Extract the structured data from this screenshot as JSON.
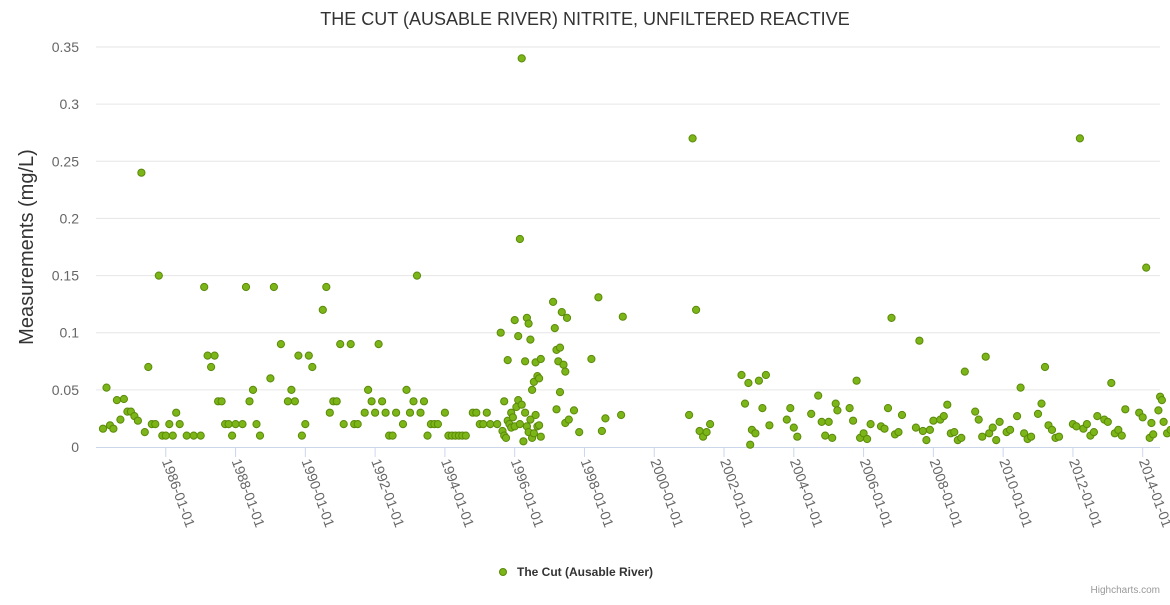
{
  "chart_data": {
    "type": "scatter",
    "title": "THE CUT (AUSABLE RIVER) NITRITE, UNFILTERED REACTIVE",
    "xlabel": "",
    "ylabel": "Measurements (mg/L)",
    "x_type": "date",
    "xlim": [
      "1984-01-01",
      "2014-07-01"
    ],
    "ylim": [
      0,
      0.35
    ],
    "y_ticks": [
      0,
      0.05,
      0.1,
      0.15,
      0.2,
      0.25,
      0.3,
      0.35
    ],
    "y_tick_labels": [
      "0",
      "0.05",
      "0.1",
      "0.15",
      "0.2",
      "0.25",
      "0.3",
      "0.35"
    ],
    "x_ticks": [
      "1986-01-01",
      "1988-01-01",
      "1990-01-01",
      "1992-01-01",
      "1994-01-01",
      "1996-01-01",
      "1998-01-01",
      "2000-01-01",
      "2002-01-01",
      "2004-01-01",
      "2006-01-01",
      "2008-01-01",
      "2010-01-01",
      "2012-01-01",
      "2014-01-01"
    ],
    "grid": "horizontal",
    "legend": "bottom-center",
    "series": [
      {
        "name": "The Cut (Ausable River)",
        "color": "#7cb518",
        "points": [
          [
            1984.2,
            0.016
          ],
          [
            1984.3,
            0.052
          ],
          [
            1984.4,
            0.019
          ],
          [
            1984.5,
            0.016
          ],
          [
            1984.6,
            0.041
          ],
          [
            1984.7,
            0.024
          ],
          [
            1984.8,
            0.042
          ],
          [
            1984.9,
            0.031
          ],
          [
            1985.0,
            0.031
          ],
          [
            1985.1,
            0.027
          ],
          [
            1985.2,
            0.023
          ],
          [
            1985.3,
            0.24
          ],
          [
            1985.4,
            0.013
          ],
          [
            1985.5,
            0.07
          ],
          [
            1985.6,
            0.02
          ],
          [
            1985.7,
            0.02
          ],
          [
            1985.8,
            0.15
          ],
          [
            1985.9,
            0.01
          ],
          [
            1986.0,
            0.01
          ],
          [
            1986.1,
            0.02
          ],
          [
            1986.2,
            0.01
          ],
          [
            1986.3,
            0.03
          ],
          [
            1986.4,
            0.02
          ],
          [
            1986.6,
            0.01
          ],
          [
            1986.8,
            0.01
          ],
          [
            1987.0,
            0.01
          ],
          [
            1987.1,
            0.14
          ],
          [
            1987.2,
            0.08
          ],
          [
            1987.3,
            0.07
          ],
          [
            1987.4,
            0.08
          ],
          [
            1987.5,
            0.04
          ],
          [
            1987.6,
            0.04
          ],
          [
            1987.7,
            0.02
          ],
          [
            1987.8,
            0.02
          ],
          [
            1987.9,
            0.01
          ],
          [
            1988.0,
            0.02
          ],
          [
            1988.2,
            0.02
          ],
          [
            1988.3,
            0.14
          ],
          [
            1988.4,
            0.04
          ],
          [
            1988.5,
            0.05
          ],
          [
            1988.6,
            0.02
          ],
          [
            1988.7,
            0.01
          ],
          [
            1989.0,
            0.06
          ],
          [
            1989.1,
            0.14
          ],
          [
            1989.3,
            0.09
          ],
          [
            1989.5,
            0.04
          ],
          [
            1989.6,
            0.05
          ],
          [
            1989.7,
            0.04
          ],
          [
            1989.8,
            0.08
          ],
          [
            1989.9,
            0.01
          ],
          [
            1990.0,
            0.02
          ],
          [
            1990.1,
            0.08
          ],
          [
            1990.2,
            0.07
          ],
          [
            1990.5,
            0.12
          ],
          [
            1990.6,
            0.14
          ],
          [
            1990.7,
            0.03
          ],
          [
            1990.8,
            0.04
          ],
          [
            1990.9,
            0.04
          ],
          [
            1991.0,
            0.09
          ],
          [
            1991.1,
            0.02
          ],
          [
            1991.3,
            0.09
          ],
          [
            1991.4,
            0.02
          ],
          [
            1991.5,
            0.02
          ],
          [
            1991.7,
            0.03
          ],
          [
            1991.8,
            0.05
          ],
          [
            1991.9,
            0.04
          ],
          [
            1992.0,
            0.03
          ],
          [
            1992.1,
            0.09
          ],
          [
            1992.2,
            0.04
          ],
          [
            1992.3,
            0.03
          ],
          [
            1992.4,
            0.01
          ],
          [
            1992.5,
            0.01
          ],
          [
            1992.6,
            0.03
          ],
          [
            1992.8,
            0.02
          ],
          [
            1992.9,
            0.05
          ],
          [
            1993.0,
            0.03
          ],
          [
            1993.1,
            0.04
          ],
          [
            1993.2,
            0.15
          ],
          [
            1993.3,
            0.03
          ],
          [
            1993.4,
            0.04
          ],
          [
            1993.5,
            0.01
          ],
          [
            1993.6,
            0.02
          ],
          [
            1993.7,
            0.02
          ],
          [
            1993.8,
            0.02
          ],
          [
            1994.0,
            0.03
          ],
          [
            1994.1,
            0.01
          ],
          [
            1994.2,
            0.01
          ],
          [
            1994.3,
            0.01
          ],
          [
            1994.4,
            0.01
          ],
          [
            1994.5,
            0.01
          ],
          [
            1994.6,
            0.01
          ],
          [
            1994.8,
            0.03
          ],
          [
            1994.9,
            0.03
          ],
          [
            1995.0,
            0.02
          ],
          [
            1995.1,
            0.02
          ],
          [
            1995.2,
            0.03
          ],
          [
            1995.3,
            0.02
          ],
          [
            1995.5,
            0.02
          ],
          [
            1995.6,
            0.1
          ],
          [
            1995.7,
            0.04
          ],
          [
            1995.8,
            0.076
          ],
          [
            1995.9,
            0.03
          ],
          [
            1996.0,
            0.111
          ],
          [
            1996.1,
            0.097
          ],
          [
            1996.15,
            0.182
          ],
          [
            1996.2,
            0.34
          ],
          [
            1996.3,
            0.075
          ],
          [
            1996.35,
            0.113
          ],
          [
            1996.4,
            0.108
          ],
          [
            1996.45,
            0.094
          ],
          [
            1996.5,
            0.05
          ],
          [
            1996.55,
            0.057
          ],
          [
            1996.6,
            0.074
          ],
          [
            1996.65,
            0.062
          ],
          [
            1996.7,
            0.06
          ],
          [
            1996.75,
            0.077
          ],
          [
            1995.65,
            0.014
          ],
          [
            1995.7,
            0.01
          ],
          [
            1995.75,
            0.008
          ],
          [
            1995.8,
            0.023
          ],
          [
            1995.85,
            0.02
          ],
          [
            1995.9,
            0.017
          ],
          [
            1995.95,
            0.026
          ],
          [
            1996.0,
            0.018
          ],
          [
            1996.05,
            0.035
          ],
          [
            1996.1,
            0.041
          ],
          [
            1996.15,
            0.02
          ],
          [
            1996.2,
            0.037
          ],
          [
            1996.25,
            0.005
          ],
          [
            1996.3,
            0.03
          ],
          [
            1996.35,
            0.018
          ],
          [
            1996.4,
            0.013
          ],
          [
            1996.45,
            0.024
          ],
          [
            1996.5,
            0.008
          ],
          [
            1996.55,
            0.012
          ],
          [
            1996.6,
            0.028
          ],
          [
            1996.65,
            0.018
          ],
          [
            1996.7,
            0.019
          ],
          [
            1996.75,
            0.009
          ],
          [
            1997.1,
            0.127
          ],
          [
            1997.15,
            0.104
          ],
          [
            1997.2,
            0.085
          ],
          [
            1997.25,
            0.075
          ],
          [
            1997.3,
            0.087
          ],
          [
            1997.35,
            0.118
          ],
          [
            1997.4,
            0.072
          ],
          [
            1997.45,
            0.066
          ],
          [
            1997.5,
            0.113
          ],
          [
            1997.2,
            0.033
          ],
          [
            1997.3,
            0.048
          ],
          [
            1997.45,
            0.021
          ],
          [
            1997.55,
            0.024
          ],
          [
            1997.7,
            0.032
          ],
          [
            1997.85,
            0.013
          ],
          [
            1998.2,
            0.077
          ],
          [
            1998.4,
            0.131
          ],
          [
            1998.5,
            0.014
          ],
          [
            1998.6,
            0.025
          ],
          [
            1999.1,
            0.114
          ],
          [
            1999.05,
            0.028
          ],
          [
            2001.0,
            0.028
          ],
          [
            2001.1,
            0.27
          ],
          [
            2001.2,
            0.12
          ],
          [
            2001.3,
            0.014
          ],
          [
            2001.4,
            0.009
          ],
          [
            2001.5,
            0.013
          ],
          [
            2001.6,
            0.02
          ],
          [
            2002.5,
            0.063
          ],
          [
            2002.6,
            0.038
          ],
          [
            2002.7,
            0.056
          ],
          [
            2002.75,
            0.002
          ],
          [
            2002.8,
            0.015
          ],
          [
            2002.9,
            0.012
          ],
          [
            2003.0,
            0.058
          ],
          [
            2003.1,
            0.034
          ],
          [
            2003.2,
            0.063
          ],
          [
            2003.3,
            0.019
          ],
          [
            2003.8,
            0.024
          ],
          [
            2003.9,
            0.034
          ],
          [
            2004.0,
            0.017
          ],
          [
            2004.1,
            0.009
          ],
          [
            2004.5,
            0.029
          ],
          [
            2004.7,
            0.045
          ],
          [
            2004.8,
            0.022
          ],
          [
            2004.9,
            0.01
          ],
          [
            2005.0,
            0.022
          ],
          [
            2005.1,
            0.008
          ],
          [
            2005.2,
            0.038
          ],
          [
            2005.25,
            0.032
          ],
          [
            2005.6,
            0.034
          ],
          [
            2005.7,
            0.023
          ],
          [
            2005.8,
            0.058
          ],
          [
            2005.9,
            0.008
          ],
          [
            2006.0,
            0.012
          ],
          [
            2006.1,
            0.007
          ],
          [
            2006.2,
            0.02
          ],
          [
            2006.5,
            0.018
          ],
          [
            2006.6,
            0.016
          ],
          [
            2006.7,
            0.034
          ],
          [
            2006.8,
            0.113
          ],
          [
            2006.9,
            0.011
          ],
          [
            2007.0,
            0.013
          ],
          [
            2007.1,
            0.028
          ],
          [
            2007.6,
            0.093
          ],
          [
            2007.5,
            0.017
          ],
          [
            2007.7,
            0.014
          ],
          [
            2007.8,
            0.006
          ],
          [
            2007.9,
            0.015
          ],
          [
            2008.0,
            0.023
          ],
          [
            2008.2,
            0.024
          ],
          [
            2008.3,
            0.027
          ],
          [
            2008.4,
            0.037
          ],
          [
            2008.5,
            0.012
          ],
          [
            2008.6,
            0.013
          ],
          [
            2008.7,
            0.006
          ],
          [
            2008.8,
            0.008
          ],
          [
            2008.9,
            0.066
          ],
          [
            2009.2,
            0.031
          ],
          [
            2009.3,
            0.024
          ],
          [
            2009.4,
            0.009
          ],
          [
            2009.5,
            0.079
          ],
          [
            2009.6,
            0.012
          ],
          [
            2009.7,
            0.017
          ],
          [
            2009.8,
            0.006
          ],
          [
            2009.9,
            0.022
          ],
          [
            2010.1,
            0.013
          ],
          [
            2010.2,
            0.015
          ],
          [
            2010.4,
            0.027
          ],
          [
            2010.5,
            0.052
          ],
          [
            2010.6,
            0.012
          ],
          [
            2010.7,
            0.007
          ],
          [
            2010.8,
            0.009
          ],
          [
            2011.0,
            0.029
          ],
          [
            2011.1,
            0.038
          ],
          [
            2011.2,
            0.07
          ],
          [
            2011.3,
            0.019
          ],
          [
            2011.4,
            0.015
          ],
          [
            2011.5,
            0.008
          ],
          [
            2011.6,
            0.009
          ],
          [
            2012.0,
            0.02
          ],
          [
            2012.1,
            0.018
          ],
          [
            2012.2,
            0.27
          ],
          [
            2012.3,
            0.016
          ],
          [
            2012.4,
            0.02
          ],
          [
            2012.5,
            0.01
          ],
          [
            2012.6,
            0.013
          ],
          [
            2012.7,
            0.027
          ],
          [
            2012.9,
            0.024
          ],
          [
            2013.0,
            0.022
          ],
          [
            2013.1,
            0.056
          ],
          [
            2013.2,
            0.012
          ],
          [
            2013.3,
            0.015
          ],
          [
            2013.4,
            0.01
          ],
          [
            2013.5,
            0.033
          ],
          [
            2013.9,
            0.03
          ],
          [
            2014.0,
            0.026
          ],
          [
            2014.1,
            0.157
          ],
          [
            2014.2,
            0.008
          ],
          [
            2014.25,
            0.021
          ],
          [
            2014.3,
            0.011
          ],
          [
            2014.45,
            0.032
          ],
          [
            2014.5,
            0.044
          ],
          [
            2014.55,
            0.041
          ],
          [
            2014.6,
            0.022
          ],
          [
            2014.7,
            0.012
          ],
          [
            2014.8,
            0.015
          ],
          [
            2014.9,
            0.016
          ]
        ]
      }
    ]
  },
  "credit": "Highcharts.com"
}
